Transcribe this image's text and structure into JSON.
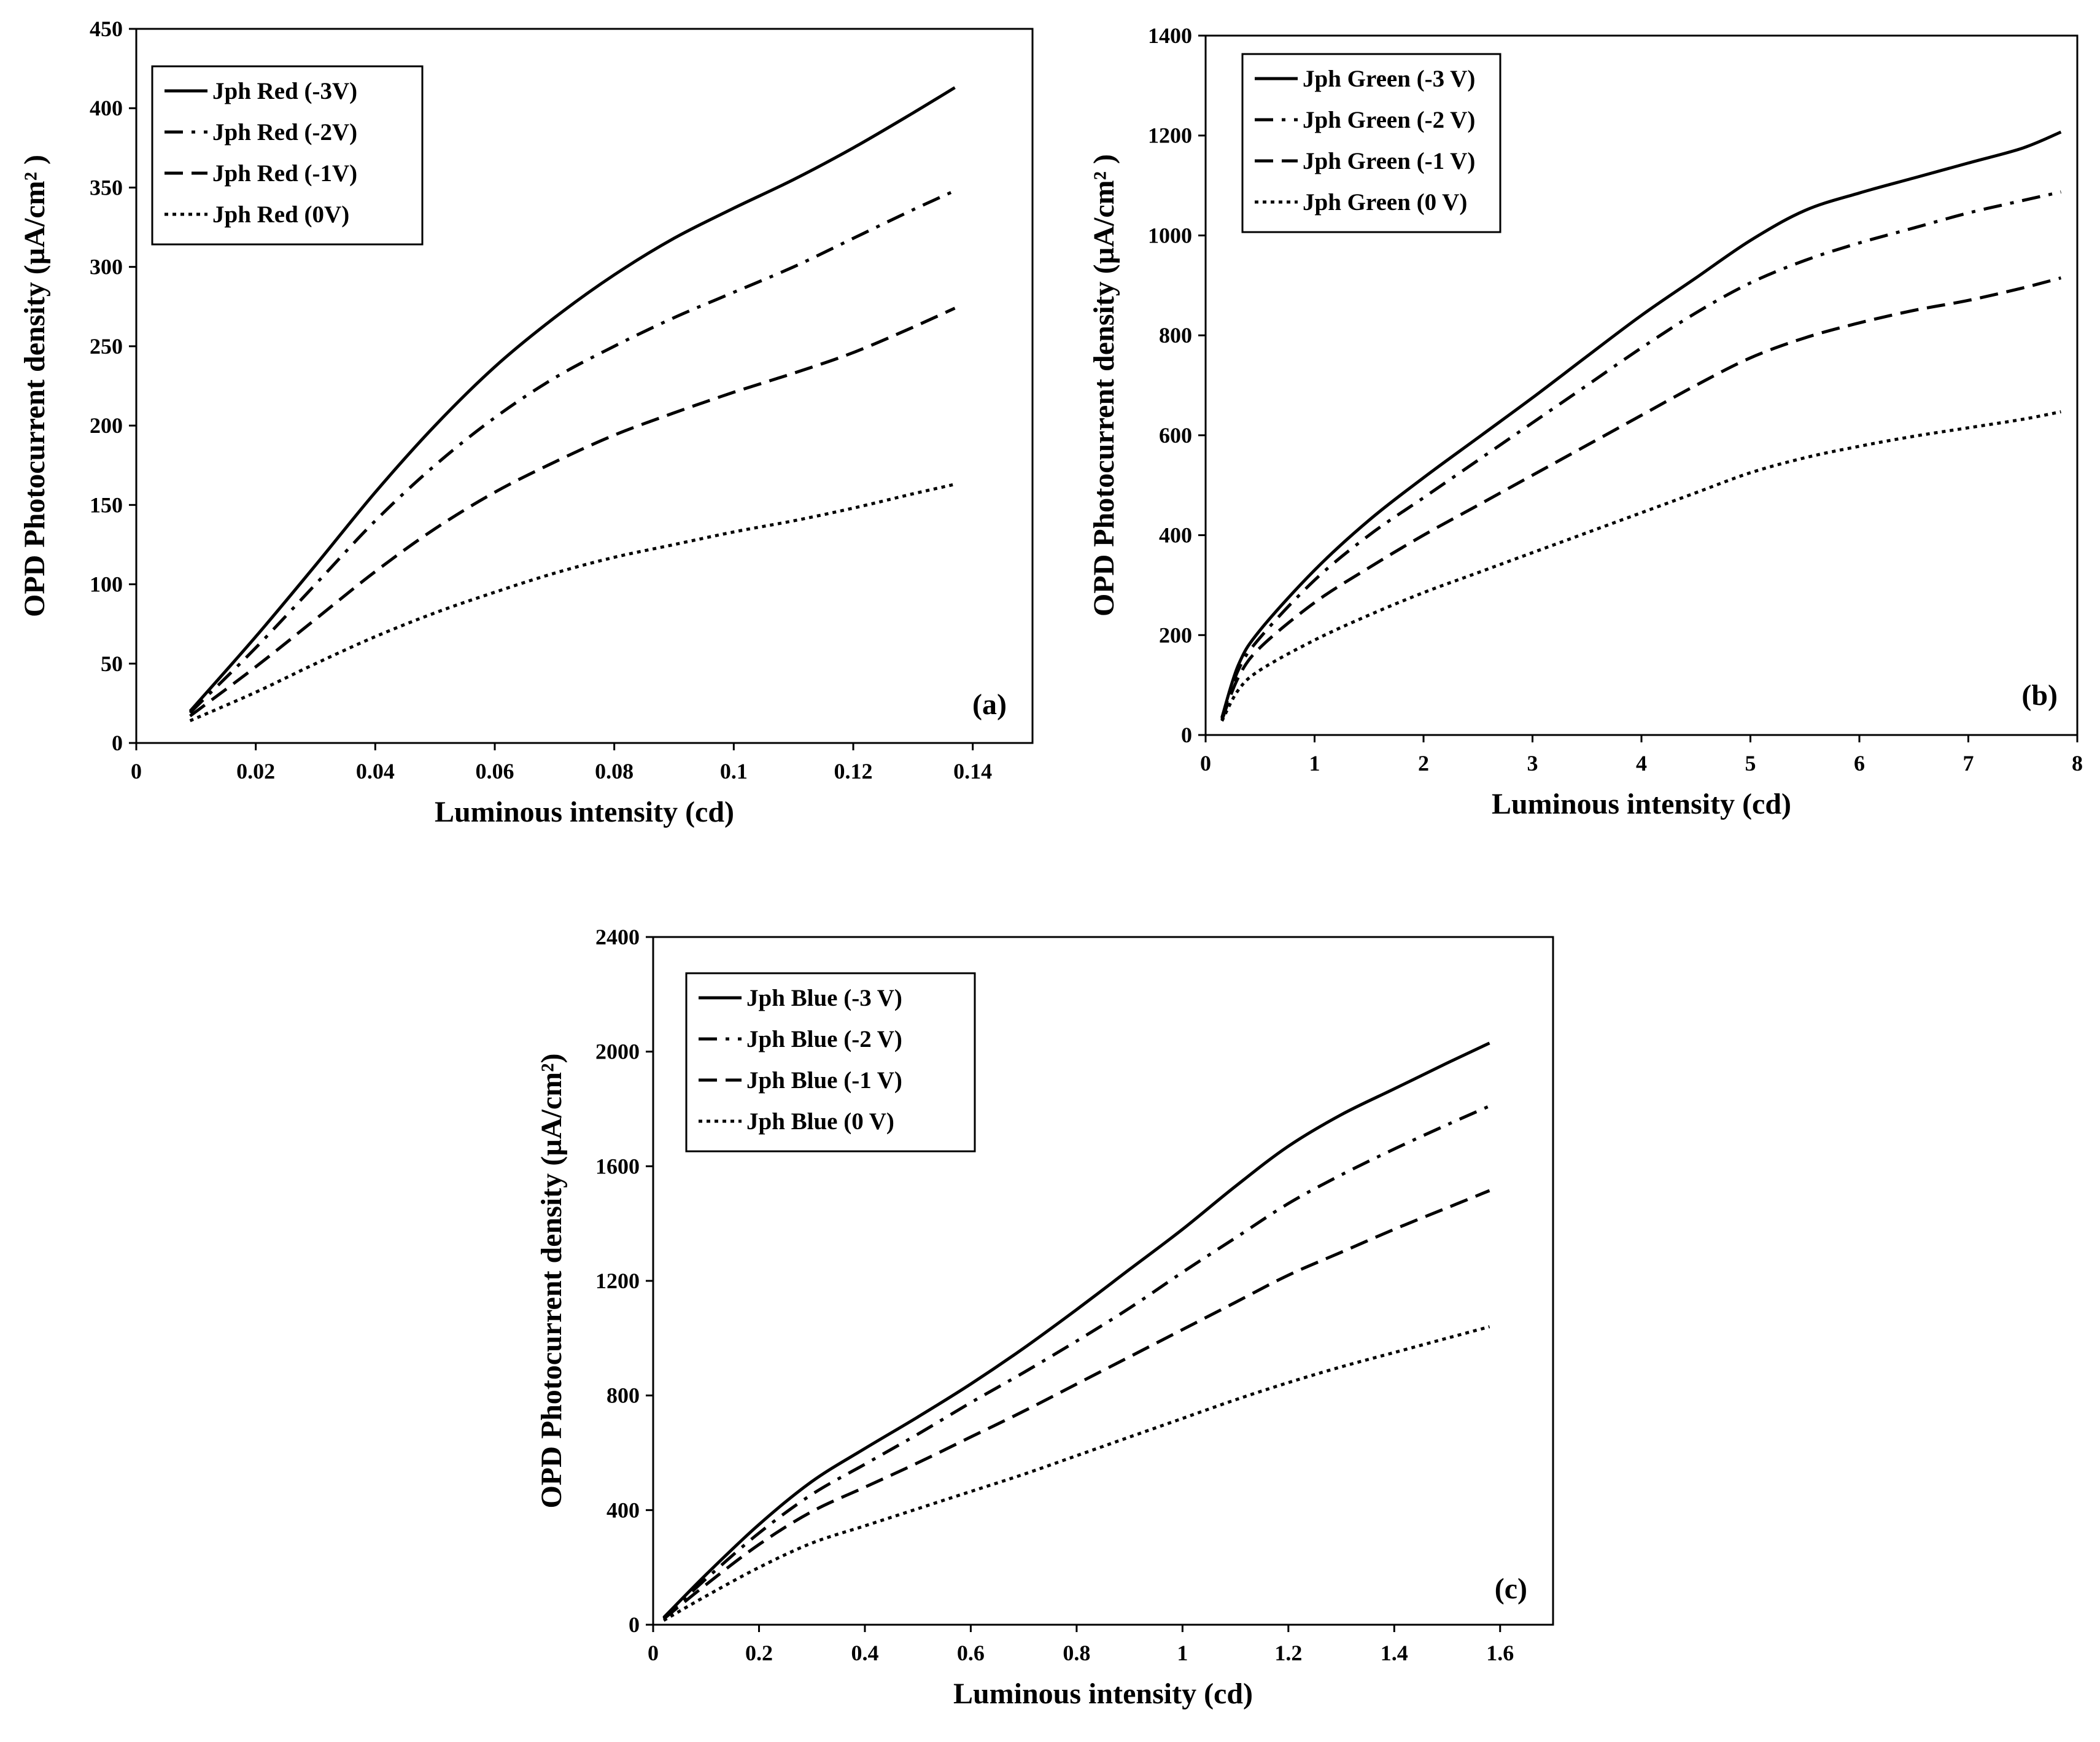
{
  "figure": {
    "chart_data": [
      {
        "id": "a",
        "type": "line",
        "panel_label": "(a)",
        "xlabel": "Luminous intensity (cd)",
        "ylabel": "OPD Photocurrent density (µA/cm² )",
        "xlim": [
          0,
          0.15
        ],
        "ylim": [
          0,
          450
        ],
        "xticks": [
          "0",
          "0.02",
          "0.04",
          "0.06",
          "0.08",
          "0.1",
          "0.12",
          "0.14"
        ],
        "xtick_values": [
          0,
          0.02,
          0.04,
          0.06,
          0.08,
          0.1,
          0.12,
          0.14
        ],
        "yticks": [
          "0",
          "50",
          "100",
          "150",
          "200",
          "250",
          "300",
          "350",
          "400",
          "450"
        ],
        "ytick_values": [
          0,
          50,
          100,
          150,
          200,
          250,
          300,
          350,
          400,
          450
        ],
        "legend_position": "top-left",
        "series": [
          {
            "name": "Jph Red (-3V)",
            "style": "solid",
            "x": [
              0.009,
              0.02,
              0.03,
              0.04,
              0.05,
              0.06,
              0.07,
              0.08,
              0.09,
              0.1,
              0.11,
              0.12,
              0.13,
              0.137
            ],
            "y": [
              20,
              67,
              112,
              158,
              200,
              237,
              268,
              295,
              318,
              337,
              355,
              375,
              397,
              413
            ]
          },
          {
            "name": "Jph Red (-2V)",
            "style": "dashdot",
            "x": [
              0.009,
              0.02,
              0.03,
              0.04,
              0.05,
              0.06,
              0.07,
              0.08,
              0.09,
              0.1,
              0.11,
              0.12,
              0.13,
              0.137
            ],
            "y": [
              19,
              60,
              100,
              140,
              175,
              205,
              230,
              250,
              268,
              284,
              300,
              318,
              336,
              348
            ]
          },
          {
            "name": "Jph Red (-1V)",
            "style": "dashed",
            "x": [
              0.009,
              0.02,
              0.03,
              0.04,
              0.05,
              0.06,
              0.07,
              0.08,
              0.09,
              0.1,
              0.11,
              0.12,
              0.13,
              0.137
            ],
            "y": [
              17,
              48,
              78,
              108,
              135,
              158,
              177,
              194,
              208,
              221,
              233,
              246,
              262,
              274
            ]
          },
          {
            "name": "Jph Red (0V)",
            "style": "dotted",
            "x": [
              0.009,
              0.02,
              0.03,
              0.04,
              0.05,
              0.06,
              0.07,
              0.08,
              0.09,
              0.1,
              0.11,
              0.12,
              0.13,
              0.137
            ],
            "y": [
              14,
              32,
              50,
              67,
              82,
              95,
              107,
              117,
              125,
              133,
              140,
              148,
              157,
              163
            ]
          }
        ]
      },
      {
        "id": "b",
        "type": "line",
        "panel_label": "(b)",
        "xlabel": "Luminous intensity (cd)",
        "ylabel": "OPD Photocurrent density (µA/cm² )",
        "xlim": [
          0,
          8
        ],
        "ylim": [
          0,
          1400
        ],
        "xticks": [
          "0",
          "1",
          "2",
          "3",
          "4",
          "5",
          "6",
          "7",
          "8"
        ],
        "xtick_values": [
          0,
          1,
          2,
          3,
          4,
          5,
          6,
          7,
          8
        ],
        "yticks": [
          "0",
          "200",
          "400",
          "600",
          "800",
          "1000",
          "1200",
          "1400"
        ],
        "ytick_values": [
          0,
          200,
          400,
          600,
          800,
          1000,
          1200,
          1400
        ],
        "legend_position": "top-left",
        "series": [
          {
            "name": "Jph Green (-3 V)",
            "style": "solid",
            "x": [
              0.15,
              0.3,
              0.5,
              1,
              1.5,
              2,
              2.5,
              3,
              3.5,
              4,
              4.5,
              5,
              5.5,
              6,
              6.5,
              7,
              7.5,
              7.85
            ],
            "y": [
              35,
              140,
              210,
              330,
              430,
              515,
              595,
              675,
              758,
              840,
              915,
              990,
              1050,
              1085,
              1115,
              1145,
              1175,
              1207
            ]
          },
          {
            "name": "Jph Green (-2 V)",
            "style": "dashdot",
            "x": [
              0.15,
              0.3,
              0.5,
              1,
              1.5,
              2,
              2.5,
              3,
              3.5,
              4,
              4.5,
              5,
              5.5,
              6,
              6.5,
              7,
              7.5,
              7.85
            ],
            "y": [
              33,
              130,
              195,
              310,
              400,
              475,
              550,
              625,
              700,
              775,
              845,
              905,
              950,
              985,
              1015,
              1045,
              1070,
              1087
            ]
          },
          {
            "name": "Jph Green (-1 V)",
            "style": "dashed",
            "x": [
              0.15,
              0.3,
              0.5,
              1,
              1.5,
              2,
              2.5,
              3,
              3.5,
              4,
              4.5,
              5,
              5.5,
              6,
              6.5,
              7,
              7.5,
              7.85
            ],
            "y": [
              30,
              115,
              175,
              265,
              335,
              400,
              460,
              520,
              580,
              640,
              700,
              755,
              795,
              825,
              850,
              870,
              895,
              915
            ]
          },
          {
            "name": "Jph Green (0 V)",
            "style": "dotted",
            "x": [
              0.15,
              0.3,
              0.5,
              1,
              1.5,
              2,
              2.5,
              3,
              3.5,
              4,
              4.5,
              5,
              5.5,
              6,
              6.5,
              7,
              7.5,
              7.85
            ],
            "y": [
              28,
              90,
              130,
              190,
              240,
              285,
              325,
              365,
              405,
              445,
              485,
              525,
              555,
              578,
              598,
              615,
              632,
              647
            ]
          }
        ]
      },
      {
        "id": "c",
        "type": "line",
        "panel_label": "(c)",
        "xlabel": "Luminous intensity (cd)",
        "ylabel": "OPD Photocurrent density (µA/cm²)",
        "xlim": [
          0,
          1.7
        ],
        "ylim": [
          0,
          2400
        ],
        "xticks": [
          "0",
          "0.2",
          "0.4",
          "0.6",
          "0.8",
          "1",
          "1.2",
          "1.4",
          "1.6"
        ],
        "xtick_values": [
          0,
          0.2,
          0.4,
          0.6,
          0.8,
          1,
          1.2,
          1.4,
          1.6
        ],
        "yticks": [
          "0",
          "400",
          "800",
          "1200",
          "1600",
          "2000",
          "2400"
        ],
        "ytick_values": [
          0,
          400,
          800,
          1200,
          1600,
          2000,
          2400
        ],
        "legend_position": "top-left",
        "series": [
          {
            "name": "Jph Blue (-3 V)",
            "style": "solid",
            "x": [
              0.02,
              0.1,
              0.2,
              0.3,
              0.4,
              0.5,
              0.6,
              0.7,
              0.8,
              0.9,
              1.0,
              1.1,
              1.2,
              1.3,
              1.4,
              1.5,
              1.58
            ],
            "y": [
              25,
              175,
              350,
              500,
              615,
              725,
              840,
              965,
              1100,
              1240,
              1380,
              1530,
              1670,
              1780,
              1870,
              1960,
              2030
            ]
          },
          {
            "name": "Jph Blue (-2 V)",
            "style": "dashdot",
            "x": [
              0.02,
              0.1,
              0.2,
              0.3,
              0.4,
              0.5,
              0.6,
              0.7,
              0.8,
              0.9,
              1.0,
              1.1,
              1.2,
              1.3,
              1.4,
              1.5,
              1.58
            ],
            "y": [
              22,
              160,
              320,
              455,
              560,
              665,
              775,
              880,
              990,
              1105,
              1230,
              1350,
              1470,
              1570,
              1660,
              1745,
              1810
            ]
          },
          {
            "name": "Jph Blue (-1 V)",
            "style": "dashed",
            "x": [
              0.02,
              0.1,
              0.2,
              0.3,
              0.4,
              0.5,
              0.6,
              0.7,
              0.8,
              0.9,
              1.0,
              1.1,
              1.2,
              1.3,
              1.4,
              1.5,
              1.58
            ],
            "y": [
              20,
              140,
              280,
              395,
              480,
              565,
              655,
              745,
              840,
              935,
              1030,
              1125,
              1220,
              1300,
              1380,
              1455,
              1515
            ]
          },
          {
            "name": "Jph Blue (0 V)",
            "style": "dotted",
            "x": [
              0.02,
              0.1,
              0.2,
              0.3,
              0.4,
              0.5,
              0.6,
              0.7,
              0.8,
              0.9,
              1.0,
              1.1,
              1.2,
              1.3,
              1.4,
              1.5,
              1.58
            ],
            "y": [
              15,
              100,
              200,
              285,
              345,
              405,
              465,
              525,
              590,
              655,
              720,
              785,
              845,
              900,
              950,
              1000,
              1040
            ]
          }
        ]
      }
    ]
  }
}
